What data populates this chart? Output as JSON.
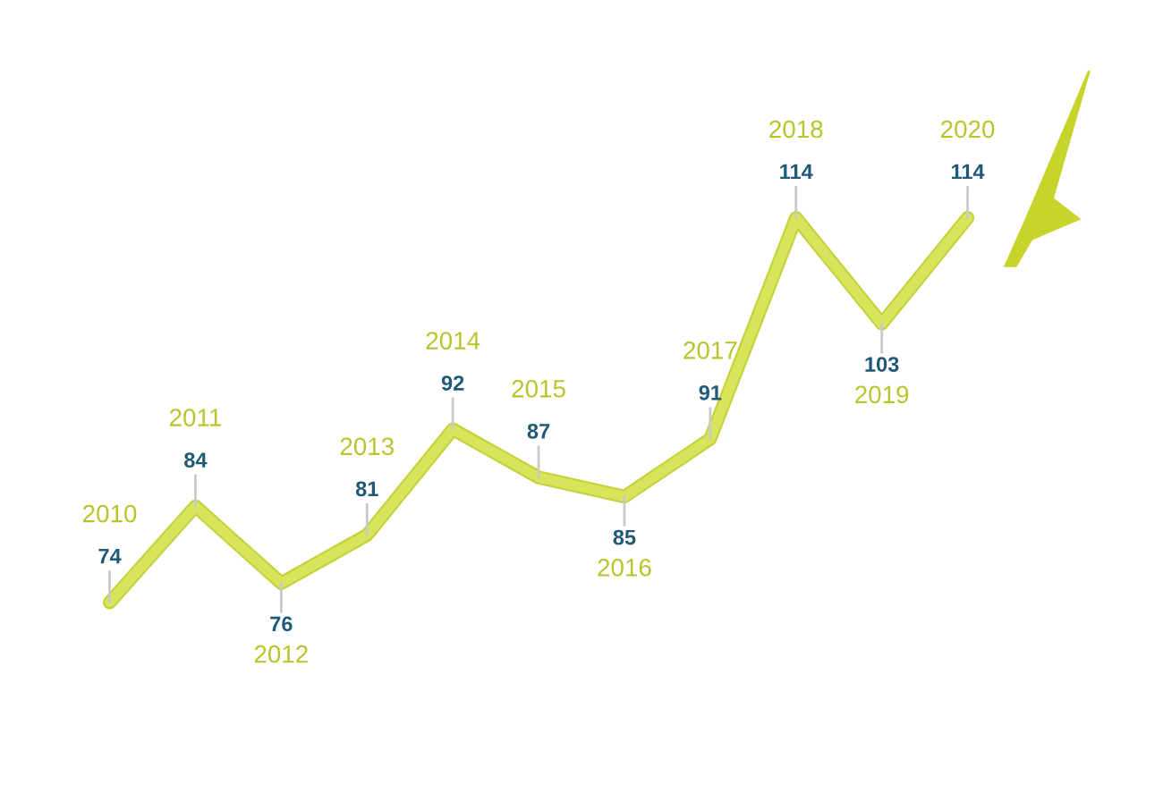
{
  "chart_data": {
    "type": "line",
    "categories": [
      "2010",
      "2011",
      "2012",
      "2013",
      "2014",
      "2015",
      "2016",
      "2017",
      "2018",
      "2019",
      "2020"
    ],
    "series": [
      {
        "color": "#d8e45a",
        "values": [
          74,
          84,
          76,
          81,
          92,
          87,
          85,
          91,
          114,
          103,
          114
        ]
      }
    ],
    "data_labels": true,
    "tick_labels": false,
    "marker": "none",
    "line_style": "solid"
  }
}
